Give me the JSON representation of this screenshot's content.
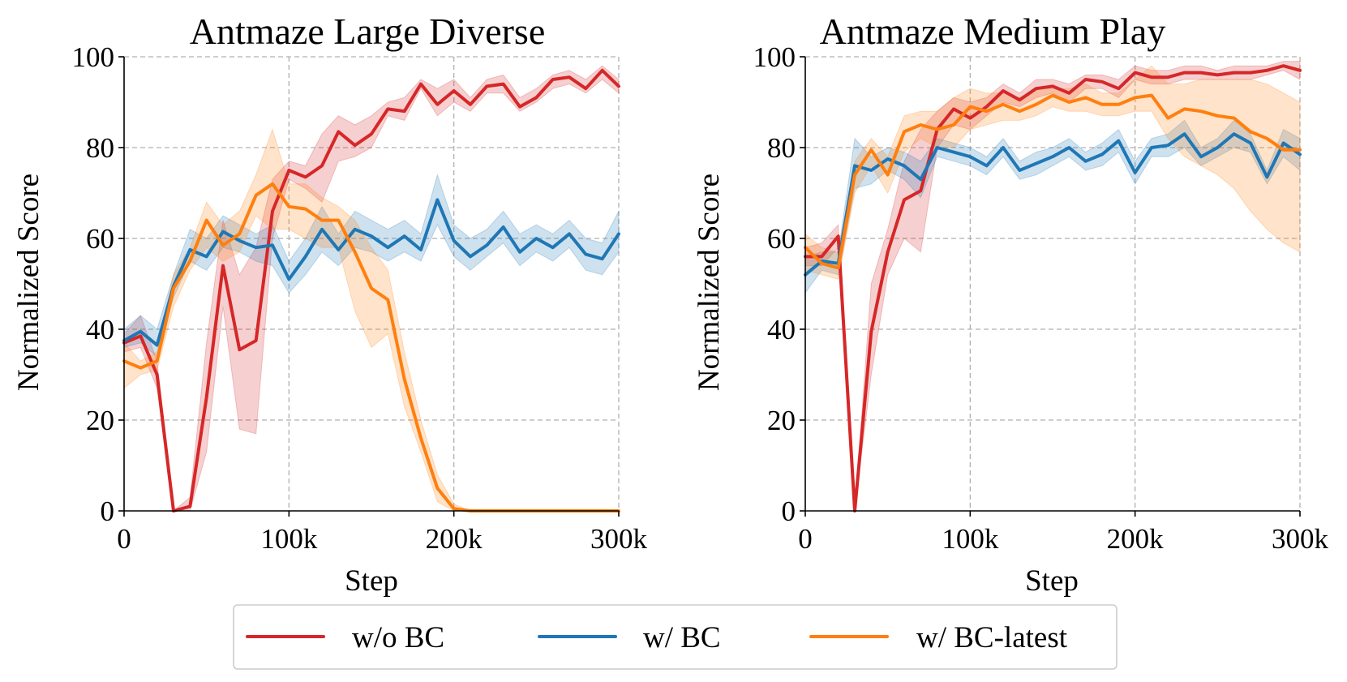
{
  "chart_data": [
    {
      "type": "line",
      "title": "Antmaze Large Diverse",
      "xlabel": "Step",
      "ylabel": "Normalized Score",
      "xlim": [
        0,
        300000
      ],
      "ylim": [
        0,
        100
      ],
      "xticks": [
        0,
        100000,
        200000,
        300000
      ],
      "xtick_labels": [
        "0",
        "100k",
        "200k",
        "300k"
      ],
      "yticks": [
        0,
        20,
        40,
        60,
        80,
        100
      ],
      "ytick_labels": [
        "0",
        "20",
        "40",
        "60",
        "80",
        "100"
      ],
      "grid": true,
      "x": [
        0,
        10000,
        20000,
        30000,
        40000,
        50000,
        60000,
        70000,
        80000,
        90000,
        100000,
        110000,
        120000,
        130000,
        140000,
        150000,
        160000,
        170000,
        180000,
        190000,
        200000,
        210000,
        220000,
        230000,
        240000,
        250000,
        260000,
        270000,
        280000,
        290000,
        300000
      ],
      "series": [
        {
          "name": "w/o BC",
          "color": "#d62728",
          "values": [
            37,
            38.5,
            30,
            0,
            1,
            25,
            54,
            35.5,
            37.5,
            66,
            75,
            73.5,
            76,
            83.5,
            80.5,
            83,
            88.5,
            88,
            94,
            89.5,
            92.5,
            89.5,
            93.5,
            94,
            89,
            91,
            95,
            95.5,
            93,
            97,
            93.5
          ],
          "lower": [
            35,
            36,
            27,
            0,
            0,
            13,
            45,
            18,
            17,
            60,
            73,
            71,
            68,
            77,
            78,
            80,
            87,
            86,
            93,
            87,
            90,
            88,
            92,
            92,
            88,
            90,
            93,
            94,
            92,
            95,
            92
          ],
          "upper": [
            39,
            43,
            33,
            0,
            3,
            37,
            64,
            52,
            58,
            73,
            77,
            76,
            83,
            87,
            85,
            87,
            90,
            91,
            95,
            93,
            95,
            91,
            95,
            96,
            91,
            93,
            96,
            97,
            95,
            98,
            95
          ]
        },
        {
          "name": "w/ BC",
          "color": "#1f77b4",
          "values": [
            37.5,
            39.5,
            36.5,
            49.5,
            57.5,
            56,
            61.5,
            59.5,
            58,
            58.5,
            51,
            56,
            62,
            57.5,
            62,
            60.5,
            58,
            60.5,
            57.5,
            68.5,
            59.5,
            56,
            58.5,
            62.5,
            57,
            60,
            58,
            61,
            56.5,
            55.5,
            61
          ],
          "lower": [
            36,
            37,
            34,
            47,
            55,
            53,
            58,
            57,
            55,
            54,
            48,
            52,
            57,
            54,
            58,
            57,
            55,
            57,
            55,
            63,
            56,
            53,
            56,
            59,
            54,
            57,
            55,
            58,
            53,
            52,
            57
          ],
          "upper": [
            40,
            43,
            40,
            52,
            62,
            60,
            65,
            63,
            61,
            63,
            55,
            60,
            67,
            61,
            66,
            64,
            62,
            64,
            61,
            74,
            63,
            60,
            62,
            66,
            61,
            63,
            61,
            64,
            60,
            59,
            66
          ]
        },
        {
          "name": "w/ BC-latest",
          "color": "#ff7f0e",
          "values": [
            33,
            31.5,
            33,
            49,
            55,
            64,
            58.5,
            61,
            69.5,
            72,
            67,
            66.5,
            64,
            64,
            57,
            49,
            46.5,
            29,
            16,
            5,
            0.5,
            0,
            0,
            0,
            0,
            0,
            0,
            0,
            0,
            0,
            0
          ],
          "lower": [
            27,
            30,
            31,
            45,
            53,
            58,
            55,
            57,
            65,
            62,
            62,
            60,
            58,
            58,
            44,
            36,
            39,
            23,
            13,
            2,
            0,
            0,
            0,
            0,
            0,
            0,
            0,
            0,
            0,
            0,
            0
          ],
          "upper": [
            37,
            33,
            35,
            52,
            58,
            68,
            63,
            66,
            74,
            84,
            72,
            72,
            69,
            67,
            64,
            58,
            53,
            35,
            20,
            8,
            1.5,
            0,
            0,
            0,
            0,
            0,
            0,
            0,
            0,
            0,
            0
          ]
        }
      ]
    },
    {
      "type": "line",
      "title": "Antmaze Medium Play",
      "xlabel": "Step",
      "ylabel": "Normalized Score",
      "xlim": [
        0,
        300000
      ],
      "ylim": [
        0,
        100
      ],
      "xticks": [
        0,
        100000,
        200000,
        300000
      ],
      "xtick_labels": [
        "0",
        "100k",
        "200k",
        "300k"
      ],
      "yticks": [
        0,
        20,
        40,
        60,
        80,
        100
      ],
      "ytick_labels": [
        "0",
        "20",
        "40",
        "60",
        "80",
        "100"
      ],
      "grid": true,
      "x": [
        0,
        10000,
        20000,
        30000,
        40000,
        50000,
        60000,
        70000,
        80000,
        90000,
        100000,
        110000,
        120000,
        130000,
        140000,
        150000,
        160000,
        170000,
        180000,
        190000,
        200000,
        210000,
        220000,
        230000,
        240000,
        250000,
        260000,
        270000,
        280000,
        290000,
        300000
      ],
      "series": [
        {
          "name": "w/o BC",
          "color": "#d62728",
          "values": [
            56,
            56,
            60.5,
            0,
            39.5,
            57,
            68.5,
            70.5,
            84,
            88.5,
            86.5,
            89,
            92.5,
            90.5,
            93,
            93.5,
            92,
            95,
            94.5,
            93,
            96.5,
            95.5,
            95.5,
            96.5,
            96.5,
            96,
            96.5,
            96.5,
            97,
            98,
            97
          ],
          "lower": [
            54,
            54,
            58,
            0,
            30,
            52,
            60,
            57,
            80,
            85,
            84,
            87,
            90,
            89,
            91,
            92,
            90,
            93,
            93,
            91,
            95,
            94,
            94,
            95,
            95,
            95,
            95,
            95,
            96,
            97,
            95
          ],
          "upper": [
            58,
            59,
            63,
            0,
            50,
            62,
            77,
            84,
            88,
            91,
            90,
            91,
            94,
            92,
            95,
            95,
            94,
            96,
            96,
            95,
            98,
            97,
            97,
            98,
            98,
            97,
            98,
            98,
            98,
            99,
            99
          ]
        },
        {
          "name": "w/ BC",
          "color": "#1f77b4",
          "values": [
            52,
            55,
            54.5,
            76,
            75,
            77.5,
            76,
            73,
            80,
            79,
            78,
            76,
            80,
            75,
            76.5,
            78,
            80,
            77,
            78.5,
            81.5,
            74.5,
            80,
            80.5,
            83,
            78,
            80,
            83,
            81,
            73.5,
            81,
            78.5
          ],
          "lower": [
            48,
            53,
            52,
            71,
            72,
            75,
            73,
            69,
            78,
            77,
            76,
            74,
            78,
            73,
            74,
            76,
            78,
            75,
            76,
            79,
            72,
            78,
            78,
            80,
            76,
            78,
            80,
            79,
            72,
            78,
            75
          ],
          "upper": [
            56,
            57,
            57,
            82,
            78,
            80,
            79,
            77,
            82,
            81,
            80,
            78,
            82,
            77,
            79,
            80,
            82,
            79,
            81,
            84,
            77,
            82,
            83,
            86,
            80,
            82,
            86,
            83,
            75,
            84,
            82
          ]
        },
        {
          "name": "w/ BC-latest",
          "color": "#ff7f0e",
          "values": [
            58,
            54.5,
            53.5,
            74,
            79.5,
            74,
            83.5,
            85,
            84,
            85,
            89,
            88,
            89.5,
            88,
            89.5,
            91.5,
            90,
            91,
            89.5,
            89.5,
            91,
            91.5,
            86.5,
            88.5,
            88,
            87,
            86.5,
            83.5,
            82,
            79.5,
            79.5
          ],
          "lower": [
            53,
            52,
            51,
            70,
            76,
            70,
            79,
            82,
            80,
            80,
            84,
            85,
            86,
            86,
            87,
            89,
            88,
            88,
            87,
            87,
            88,
            88,
            82,
            78,
            76,
            74,
            71,
            66,
            62,
            59,
            57
          ],
          "upper": [
            61,
            58,
            57,
            77,
            82,
            78,
            87,
            88,
            88,
            91,
            93,
            92,
            92,
            91,
            93,
            93,
            93,
            94,
            92,
            92,
            95,
            98,
            94,
            94,
            95,
            95,
            95,
            95,
            94,
            92,
            90
          ]
        }
      ]
    }
  ],
  "legend": {
    "position": "bottom-center",
    "entries": [
      {
        "label": "w/o BC",
        "color": "#d62728"
      },
      {
        "label": "w/ BC",
        "color": "#1f77b4"
      },
      {
        "label": "w/ BC-latest",
        "color": "#ff7f0e"
      }
    ]
  }
}
